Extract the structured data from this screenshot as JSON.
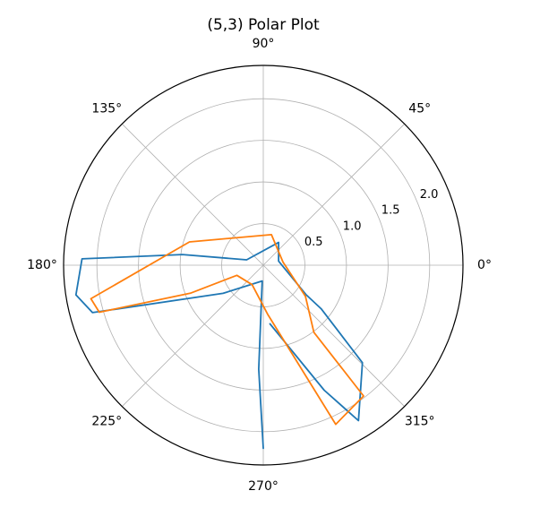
{
  "chart_data": {
    "type": "line",
    "projection": "polar",
    "title": "(5,3) Polar Plot",
    "angular_ticks": [
      "0°",
      "45°",
      "90°",
      "135°",
      "180°",
      "225°",
      "270°",
      "315°"
    ],
    "radial_ticks": [
      "0.5",
      "1.0",
      "1.5",
      "2.0"
    ],
    "radial_tick_values": [
      0.5,
      1.0,
      1.5,
      2.0
    ],
    "grid_radii": [
      0.5,
      1.0,
      1.5,
      2.0
    ],
    "rlim": [
      0,
      2.4
    ],
    "radial_label_angle_deg": 22.5,
    "grid": true,
    "series": [
      {
        "color": "#1f77b4",
        "points": [
          {
            "theta": 270,
            "r": 2.2
          },
          {
            "theta": 267.5,
            "r": 1.25
          },
          {
            "theta": 266,
            "r": 0.19
          },
          {
            "theta": 215,
            "r": 0.59
          },
          {
            "theta": 195.5,
            "r": 2.13
          },
          {
            "theta": 189,
            "r": 2.28
          },
          {
            "theta": 178,
            "r": 2.18
          },
          {
            "theta": 172.5,
            "r": 0.98
          },
          {
            "theta": 162,
            "r": 0.21
          },
          {
            "theta": 56,
            "r": 0.33
          },
          {
            "theta": 15,
            "r": 0.19
          },
          {
            "theta": -34.5,
            "r": 0.62
          },
          {
            "theta": -37,
            "r": 0.87
          },
          {
            "theta": -44.5,
            "r": 1.67
          },
          {
            "theta": -58.5,
            "r": 2.19
          },
          {
            "theta": -64,
            "r": 1.67
          },
          {
            "theta": -83.5,
            "r": 0.71
          }
        ]
      },
      {
        "color": "#ff7f0e",
        "points": [
          {
            "theta": -65.5,
            "r": 2.1
          },
          {
            "theta": -52.5,
            "r": 1.98
          },
          {
            "theta": -53,
            "r": 1.01
          },
          {
            "theta": -36.5,
            "r": 0.63
          },
          {
            "theta": 9,
            "r": 0.24
          },
          {
            "theta": 75,
            "r": 0.38
          },
          {
            "theta": 162.5,
            "r": 0.93
          },
          {
            "theta": 191,
            "r": 2.11
          },
          {
            "theta": 196,
            "r": 2.05
          },
          {
            "theta": 201,
            "r": 0.94
          },
          {
            "theta": 201,
            "r": 0.34
          },
          {
            "theta": 240,
            "r": 0.27
          },
          {
            "theta": 275,
            "r": 0.59
          },
          {
            "theta": -65.5,
            "r": 2.1
          }
        ]
      }
    ]
  }
}
